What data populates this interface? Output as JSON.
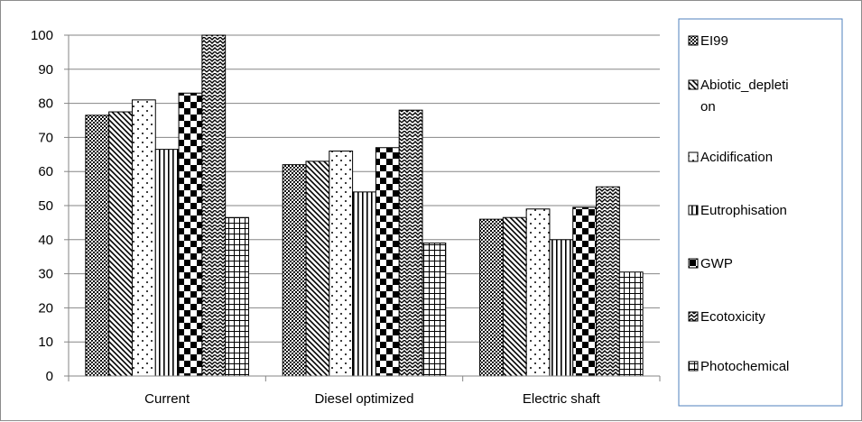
{
  "chart_data": {
    "type": "bar",
    "categories": [
      "Current",
      "Diesel optimized",
      "Electric shaft"
    ],
    "series": [
      {
        "name": "EI99",
        "values": [
          76.5,
          62,
          46
        ],
        "pattern": "diag-cross"
      },
      {
        "name": "Abiotic_depletion",
        "values": [
          77.5,
          63,
          46.5
        ],
        "pattern": "diag-lines"
      },
      {
        "name": "Acidification",
        "values": [
          81,
          66,
          49
        ],
        "pattern": "dots"
      },
      {
        "name": "Eutrophisation",
        "values": [
          66.5,
          54,
          40
        ],
        "pattern": "vertical-lines"
      },
      {
        "name": "GWP",
        "values": [
          83,
          67,
          49.5
        ],
        "pattern": "checker"
      },
      {
        "name": "Ecotoxicity",
        "values": [
          100,
          78,
          55.5
        ],
        "pattern": "zigzag"
      },
      {
        "name": "Photochemical",
        "values": [
          46.5,
          39,
          30.5
        ],
        "pattern": "grid"
      }
    ],
    "legend_labels": [
      [
        "EI99"
      ],
      [
        "Abiotic_depleti",
        "on"
      ],
      [
        "Acidification"
      ],
      [
        "Eutrophisation"
      ],
      [
        "GWP"
      ],
      [
        "Ecotoxicity"
      ],
      [
        "Photochemical"
      ]
    ],
    "y_ticks": [
      "0",
      "10",
      "20",
      "30",
      "40",
      "50",
      "60",
      "70",
      "80",
      "90",
      "100"
    ],
    "ylim": [
      0,
      100
    ],
    "grid": true,
    "legend_position": "right",
    "colors": {
      "bar_stroke": "#000000",
      "grid": "#868686",
      "legend_border": "#4f81bd",
      "frame": "#8c8c8c"
    }
  }
}
